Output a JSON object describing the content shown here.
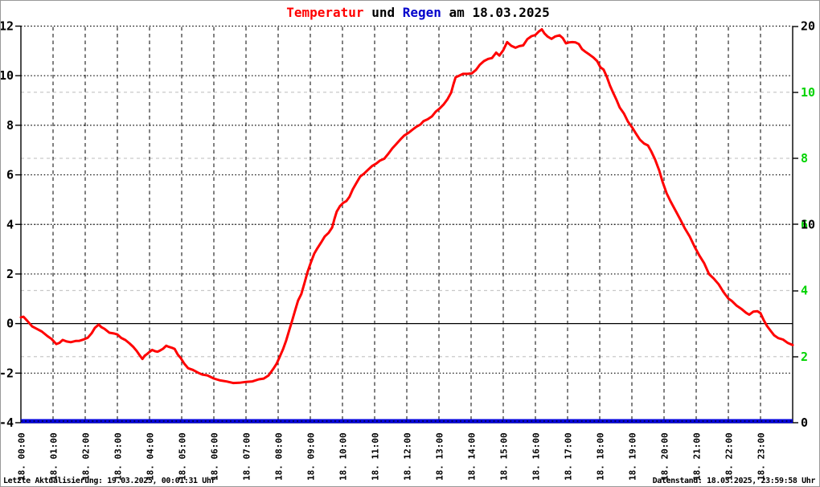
{
  "window": {
    "background": "#ffffff",
    "frame_color": "#999999"
  },
  "title": {
    "segments": [
      {
        "text": "Temperatur",
        "color": "#ff0000"
      },
      {
        "text": " und ",
        "color": "#000000"
      },
      {
        "text": "Regen",
        "color": "#0000cc"
      },
      {
        "text": " am 18.03.2025",
        "color": "#000000"
      }
    ]
  },
  "footer": {
    "left": "Letzte Aktualisierung: 19.03.2025, 00:01:31 Uhr",
    "right": "Datenstand: 18.03.2025, 23:59:58 Uhr"
  },
  "chart_data": {
    "type": "line",
    "title": "Temperatur und Regen am 18.03.2025",
    "grid": {
      "h_dotted_left_vals": [
        12,
        10,
        8,
        6,
        4,
        2,
        -2
      ],
      "h_zero_solid_val": 0,
      "h_gray_dashed_green_vals": [
        10,
        8,
        6,
        4,
        2
      ],
      "v_dashed_hours": [
        1,
        2,
        3,
        4,
        5,
        6,
        7,
        8,
        9,
        10,
        11,
        12,
        13,
        14,
        15,
        16,
        17,
        18,
        19,
        20,
        21,
        22,
        23
      ],
      "gray_color": "#c9c9c9",
      "black_color": "#000000"
    },
    "x_axis": {
      "range": [
        0,
        24
      ],
      "labels": [
        "18. 00:00",
        "18. 01:00",
        "18. 02:00",
        "18. 03:00",
        "18. 04:00",
        "18. 05:00",
        "18. 06:00",
        "18. 07:00",
        "18. 08:00",
        "18. 09:00",
        "18. 10:00",
        "18. 11:00",
        "18. 12:00",
        "18. 13:00",
        "18. 14:00",
        "18. 15:00",
        "18. 16:00",
        "18. 17:00",
        "18. 18:00",
        "18. 19:00",
        "18. 20:00",
        "18. 21:00",
        "18. 22:00",
        "18. 23:00"
      ]
    },
    "y_axis_left": {
      "range": [
        -4,
        12
      ],
      "ticks": [
        12,
        10,
        8,
        6,
        4,
        2,
        0,
        -2,
        -4
      ],
      "color": "#000000"
    },
    "y_axis_right_black": {
      "range": [
        0,
        20
      ],
      "ticks": [
        20,
        10,
        0
      ],
      "color": "#000000"
    },
    "y_axis_right_green": {
      "range": [
        0,
        12
      ],
      "ticks": [
        10,
        8,
        6,
        4,
        2
      ],
      "color": "#00d300"
    },
    "series": [
      {
        "name": "Temperatur",
        "color": "#ff0000",
        "stroke_width": 3,
        "axis": "left",
        "points": [
          [
            0,
            0.25
          ],
          [
            0.08,
            0.3
          ],
          [
            0.2,
            0.1
          ],
          [
            0.35,
            -0.1
          ],
          [
            0.5,
            -0.22
          ],
          [
            0.65,
            -0.35
          ],
          [
            0.83,
            -0.5
          ],
          [
            0.95,
            -0.62
          ],
          [
            1.1,
            -0.82
          ],
          [
            1.2,
            -0.75
          ],
          [
            1.3,
            -0.68
          ],
          [
            1.42,
            -0.73
          ],
          [
            1.55,
            -0.75
          ],
          [
            1.7,
            -0.72
          ],
          [
            1.82,
            -0.67
          ],
          [
            1.95,
            -0.63
          ],
          [
            2.08,
            -0.58
          ],
          [
            2.2,
            -0.38
          ],
          [
            2.3,
            -0.2
          ],
          [
            2.42,
            -0.05
          ],
          [
            2.5,
            -0.12
          ],
          [
            2.6,
            -0.22
          ],
          [
            2.75,
            -0.35
          ],
          [
            2.9,
            -0.4
          ],
          [
            3.0,
            -0.47
          ],
          [
            3.12,
            -0.57
          ],
          [
            3.25,
            -0.67
          ],
          [
            3.38,
            -0.8
          ],
          [
            3.5,
            -0.92
          ],
          [
            3.6,
            -1.12
          ],
          [
            3.7,
            -1.3
          ],
          [
            3.78,
            -1.43
          ],
          [
            3.85,
            -1.32
          ],
          [
            3.93,
            -1.2
          ],
          [
            4.0,
            -1.13
          ],
          [
            4.08,
            -1.07
          ],
          [
            4.17,
            -1.1
          ],
          [
            4.25,
            -1.16
          ],
          [
            4.33,
            -1.1
          ],
          [
            4.42,
            -1.0
          ],
          [
            4.52,
            -0.9
          ],
          [
            4.6,
            -0.92
          ],
          [
            4.7,
            -0.97
          ],
          [
            4.78,
            -1.05
          ],
          [
            4.88,
            -1.25
          ],
          [
            4.97,
            -1.4
          ],
          [
            5.08,
            -1.62
          ],
          [
            5.2,
            -1.77
          ],
          [
            5.35,
            -1.88
          ],
          [
            5.5,
            -1.98
          ],
          [
            5.65,
            -2.06
          ],
          [
            5.8,
            -2.12
          ],
          [
            6.0,
            -2.2
          ],
          [
            6.2,
            -2.28
          ],
          [
            6.4,
            -2.34
          ],
          [
            6.6,
            -2.38
          ],
          [
            6.8,
            -2.41
          ],
          [
            7.0,
            -2.37
          ],
          [
            7.2,
            -2.32
          ],
          [
            7.4,
            -2.26
          ],
          [
            7.55,
            -2.2
          ],
          [
            7.7,
            -2.08
          ],
          [
            7.85,
            -1.85
          ],
          [
            7.95,
            -1.62
          ],
          [
            8.05,
            -1.35
          ],
          [
            8.15,
            -1.05
          ],
          [
            8.25,
            -0.65
          ],
          [
            8.35,
            -0.25
          ],
          [
            8.42,
            0.05
          ],
          [
            8.52,
            0.5
          ],
          [
            8.62,
            0.9
          ],
          [
            8.72,
            1.2
          ],
          [
            8.82,
            1.65
          ],
          [
            8.92,
            2.1
          ],
          [
            9.02,
            2.5
          ],
          [
            9.12,
            2.8
          ],
          [
            9.22,
            3.02
          ],
          [
            9.33,
            3.27
          ],
          [
            9.45,
            3.5
          ],
          [
            9.57,
            3.68
          ],
          [
            9.68,
            3.9
          ],
          [
            9.75,
            4.2
          ],
          [
            9.82,
            4.52
          ],
          [
            9.92,
            4.72
          ],
          [
            10.02,
            4.85
          ],
          [
            10.12,
            4.97
          ],
          [
            10.22,
            5.12
          ],
          [
            10.32,
            5.42
          ],
          [
            10.42,
            5.65
          ],
          [
            10.55,
            5.9
          ],
          [
            10.67,
            6.05
          ],
          [
            10.8,
            6.22
          ],
          [
            10.92,
            6.35
          ],
          [
            11.05,
            6.48
          ],
          [
            11.17,
            6.57
          ],
          [
            11.3,
            6.63
          ],
          [
            11.42,
            6.85
          ],
          [
            11.55,
            7.05
          ],
          [
            11.67,
            7.25
          ],
          [
            11.8,
            7.45
          ],
          [
            11.92,
            7.57
          ],
          [
            12.05,
            7.7
          ],
          [
            12.17,
            7.8
          ],
          [
            12.3,
            7.92
          ],
          [
            12.42,
            8.05
          ],
          [
            12.52,
            8.17
          ],
          [
            12.65,
            8.25
          ],
          [
            12.78,
            8.37
          ],
          [
            12.9,
            8.52
          ],
          [
            13.02,
            8.67
          ],
          [
            13.15,
            8.85
          ],
          [
            13.27,
            9.05
          ],
          [
            13.38,
            9.35
          ],
          [
            13.45,
            9.65
          ],
          [
            13.52,
            9.92
          ],
          [
            13.62,
            10.0
          ],
          [
            13.75,
            10.05
          ],
          [
            13.9,
            10.08
          ],
          [
            14.02,
            10.12
          ],
          [
            14.15,
            10.22
          ],
          [
            14.27,
            10.45
          ],
          [
            14.4,
            10.58
          ],
          [
            14.53,
            10.65
          ],
          [
            14.65,
            10.73
          ],
          [
            14.78,
            10.93
          ],
          [
            14.88,
            10.82
          ],
          [
            15.0,
            11.05
          ],
          [
            15.12,
            11.33
          ],
          [
            15.25,
            11.2
          ],
          [
            15.38,
            11.13
          ],
          [
            15.5,
            11.18
          ],
          [
            15.62,
            11.25
          ],
          [
            15.75,
            11.48
          ],
          [
            15.88,
            11.58
          ],
          [
            16.0,
            11.65
          ],
          [
            16.1,
            11.75
          ],
          [
            16.2,
            11.87
          ],
          [
            16.28,
            11.73
          ],
          [
            16.38,
            11.57
          ],
          [
            16.5,
            11.5
          ],
          [
            16.62,
            11.58
          ],
          [
            16.75,
            11.6
          ],
          [
            16.85,
            11.53
          ],
          [
            16.95,
            11.3
          ],
          [
            17.05,
            11.35
          ],
          [
            17.15,
            11.38
          ],
          [
            17.25,
            11.32
          ],
          [
            17.35,
            11.27
          ],
          [
            17.45,
            11.07
          ],
          [
            17.55,
            10.95
          ],
          [
            17.68,
            10.88
          ],
          [
            17.8,
            10.75
          ],
          [
            17.92,
            10.58
          ],
          [
            18.02,
            10.35
          ],
          [
            18.12,
            10.22
          ],
          [
            18.22,
            9.95
          ],
          [
            18.32,
            9.62
          ],
          [
            18.42,
            9.3
          ],
          [
            18.52,
            9.05
          ],
          [
            18.62,
            8.72
          ],
          [
            18.75,
            8.45
          ],
          [
            18.88,
            8.15
          ],
          [
            19.0,
            7.92
          ],
          [
            19.12,
            7.68
          ],
          [
            19.25,
            7.45
          ],
          [
            19.38,
            7.25
          ],
          [
            19.5,
            7.18
          ],
          [
            19.6,
            6.95
          ],
          [
            19.72,
            6.6
          ],
          [
            19.85,
            6.2
          ],
          [
            19.95,
            5.75
          ],
          [
            20.08,
            5.25
          ],
          [
            20.2,
            4.95
          ],
          [
            20.35,
            4.55
          ],
          [
            20.5,
            4.2
          ],
          [
            20.65,
            3.85
          ],
          [
            20.8,
            3.5
          ],
          [
            20.95,
            3.12
          ],
          [
            21.1,
            2.75
          ],
          [
            21.25,
            2.4
          ],
          [
            21.4,
            2.0
          ],
          [
            21.55,
            1.8
          ],
          [
            21.7,
            1.58
          ],
          [
            21.85,
            1.3
          ],
          [
            22.0,
            1.0
          ],
          [
            22.1,
            0.92
          ],
          [
            22.25,
            0.73
          ],
          [
            22.4,
            0.57
          ],
          [
            22.55,
            0.45
          ],
          [
            22.65,
            0.37
          ],
          [
            22.78,
            0.48
          ],
          [
            22.9,
            0.52
          ],
          [
            23.0,
            0.4
          ],
          [
            23.1,
            0.12
          ],
          [
            23.2,
            -0.08
          ],
          [
            23.3,
            -0.28
          ],
          [
            23.42,
            -0.45
          ],
          [
            23.55,
            -0.57
          ],
          [
            23.7,
            -0.67
          ],
          [
            23.85,
            -0.78
          ],
          [
            24.0,
            -0.88
          ]
        ]
      },
      {
        "name": "Regen",
        "color": "#0000dd",
        "stroke_width": 5,
        "axis": "right_black",
        "points": [
          [
            0,
            0
          ],
          [
            24,
            0
          ]
        ]
      }
    ]
  }
}
